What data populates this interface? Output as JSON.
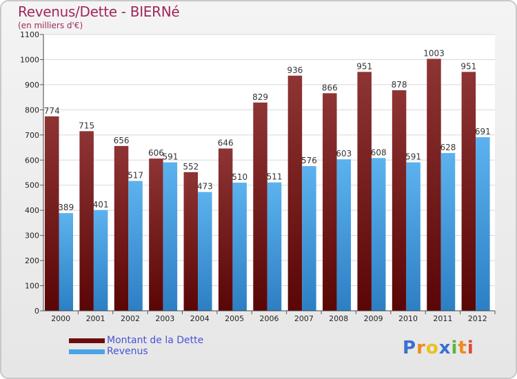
{
  "header": {
    "title": "Revenus/Dette - BIERNé",
    "subtitle": "(en milliers d'€)"
  },
  "chart_data": {
    "type": "bar",
    "categories": [
      "2000",
      "2001",
      "2002",
      "2003",
      "2004",
      "2005",
      "2006",
      "2007",
      "2008",
      "2009",
      "2010",
      "2011",
      "2012"
    ],
    "series": [
      {
        "name": "Montant de la Dette",
        "color": "#8a2a2a",
        "values": [
          774,
          715,
          656,
          606,
          552,
          646,
          829,
          936,
          866,
          951,
          878,
          1003,
          951
        ]
      },
      {
        "name": "Revenus",
        "color": "#4aa3e6",
        "values": [
          389,
          401,
          517,
          591,
          473,
          510,
          511,
          576,
          603,
          608,
          591,
          628,
          691
        ]
      }
    ],
    "ylim": [
      0,
      1100
    ],
    "yticks": [
      0,
      100,
      200,
      300,
      400,
      500,
      600,
      700,
      800,
      900,
      1000,
      1100
    ],
    "grid": true,
    "legend_position": "bottom-left"
  },
  "legend": {
    "items": [
      {
        "label": "Montant de la Dette",
        "color": "#6b0d0d"
      },
      {
        "label": "Revenus",
        "color": "#4aa3e6"
      }
    ]
  },
  "logo": {
    "text": "Proxiti",
    "letters": [
      {
        "ch": "P",
        "color": "#3b6fd1"
      },
      {
        "ch": "r",
        "color": "#f08a1c"
      },
      {
        "ch": "o",
        "color": "#e8c21a"
      },
      {
        "ch": "x",
        "color": "#3b6fd1"
      },
      {
        "ch": "i",
        "color": "#5ab83c"
      },
      {
        "ch": "t",
        "color": "#f08a1c"
      },
      {
        "ch": "i",
        "color": "#e04a3a"
      }
    ]
  }
}
